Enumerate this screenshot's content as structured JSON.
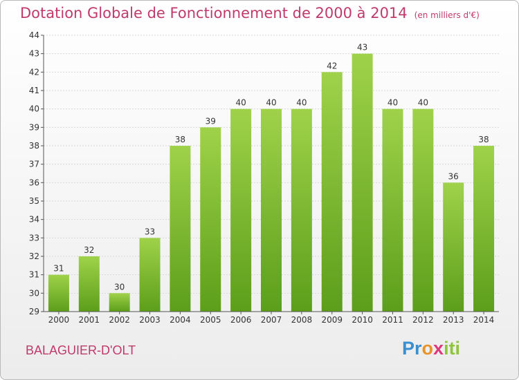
{
  "header": {
    "title": "Dotation Globale de Fonctionnement de 2000 à 2014",
    "unit": "(en milliers d'€)"
  },
  "footer": {
    "commune": "BALAGUIER-D'OLT",
    "logo_text": "Proxiti"
  },
  "colors": {
    "title": "#c0396b",
    "bar_light": "#9fd24a",
    "bar_dark": "#5c9e1a",
    "grid": "#d8d8d8"
  },
  "chart_data": {
    "type": "bar",
    "categories": [
      "2000",
      "2001",
      "2002",
      "2003",
      "2004",
      "2005",
      "2006",
      "2007",
      "2008",
      "2009",
      "2010",
      "2011",
      "2012",
      "2013",
      "2014"
    ],
    "values": [
      31,
      32,
      30,
      33,
      38,
      39,
      40,
      40,
      40,
      42,
      43,
      40,
      40,
      36,
      38
    ],
    "title": "Dotation Globale de Fonctionnement de 2000 à 2014",
    "xlabel": "",
    "ylabel": "",
    "ylim": [
      29,
      44
    ],
    "yticks": [
      29,
      30,
      31,
      32,
      33,
      34,
      35,
      36,
      37,
      38,
      39,
      40,
      41,
      42,
      43,
      44
    ],
    "grid": true,
    "data_labels": true
  }
}
